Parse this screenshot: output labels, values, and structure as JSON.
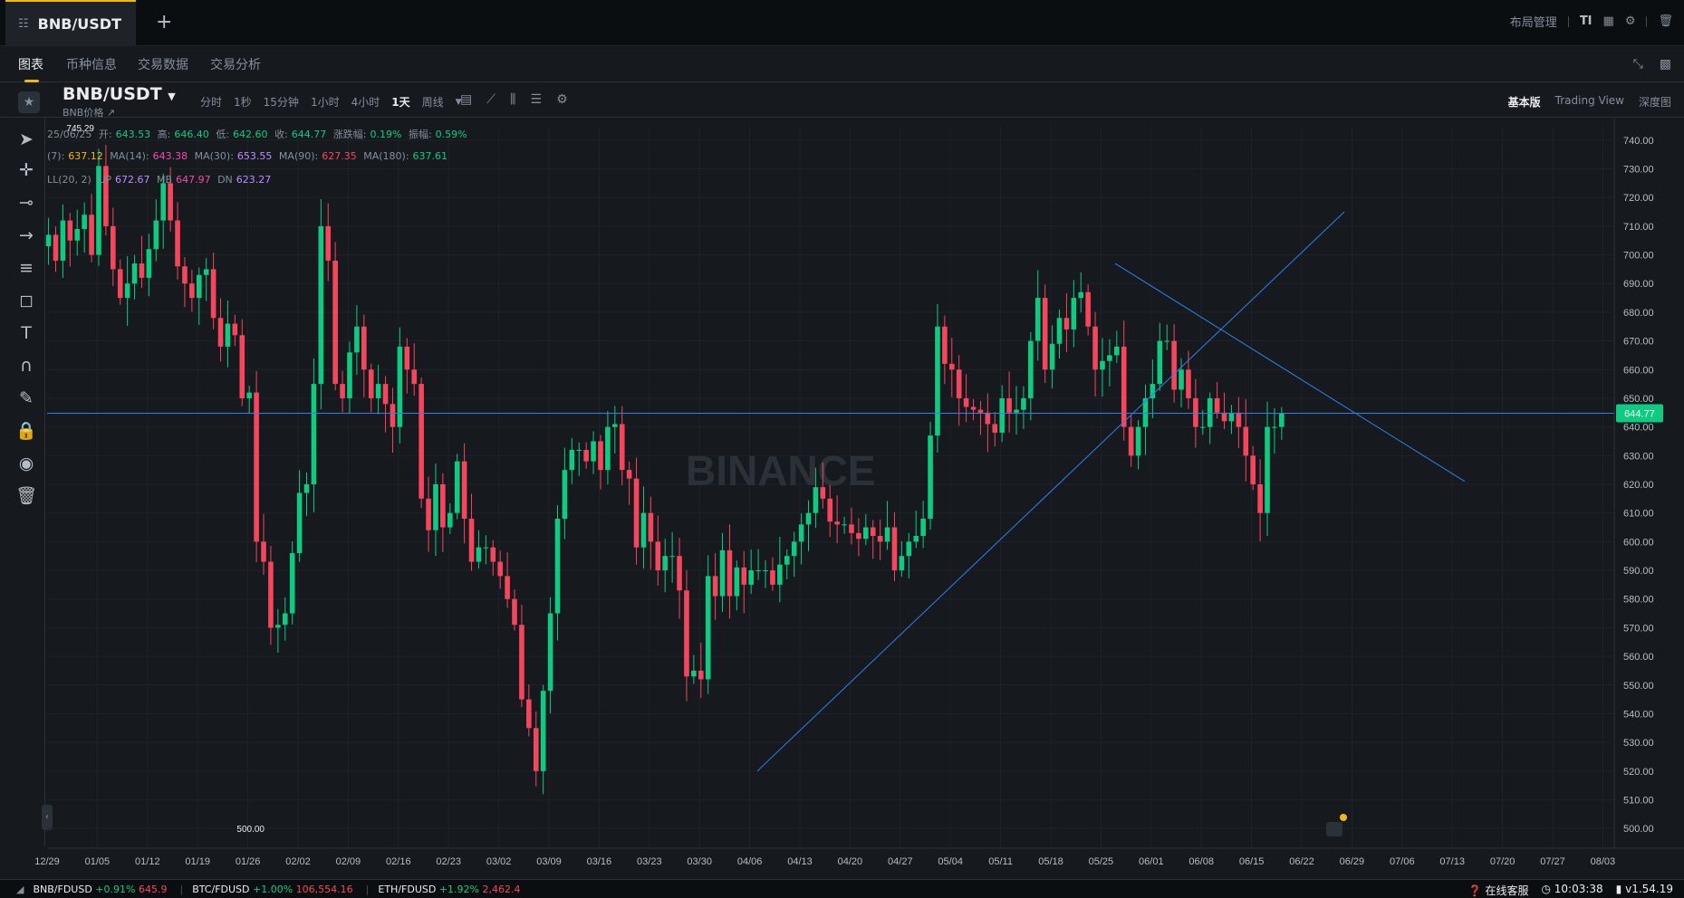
{
  "tab": {
    "title": "BNB/USDT",
    "plus": "+"
  },
  "topright": {
    "layout": "布局管理",
    "ti": "TI"
  },
  "subnav": {
    "items": [
      "图表",
      "币种信息",
      "交易数据",
      "交易分析"
    ]
  },
  "toolbar": {
    "symbol": "BNB/USDT",
    "subtitle": "BNB价格 ↗",
    "intervals": [
      "分时",
      "1秒",
      "15分钟",
      "1小时",
      "4小时",
      "1天",
      "周线"
    ],
    "active_interval": "1天",
    "views": [
      "基本版",
      "Trading View",
      "深度图"
    ],
    "active_view": "基本版"
  },
  "legend": {
    "line1": {
      "date": "25/06/25",
      "open_l": "开:",
      "open": "643.53",
      "high_l": "高:",
      "high": "646.40",
      "low_l": "低:",
      "low": "642.60",
      "close_l": "收:",
      "close": "644.77",
      "chg_l": "涨跌幅:",
      "chg": "0.19%",
      "amp_l": "振幅:",
      "amp": "0.59%"
    },
    "line2": {
      "ma7_l": "(7):",
      "ma7": "637.12",
      "ma14_l": "MA(14):",
      "ma14": "643.38",
      "ma30_l": "MA(30):",
      "ma30": "653.55",
      "ma90_l": "MA(90):",
      "ma90": "627.35",
      "ma180_l": "MA(180):",
      "ma180": "637.61"
    },
    "line3": {
      "boll_l": "LL(20, 2)",
      "up_l": "UP",
      "up": "672.67",
      "mb_l": "MB",
      "mb": "647.97",
      "dn_l": "DN",
      "dn": "623.27"
    }
  },
  "watermark": "BINANCE",
  "colors": {
    "up": "#0ecb81",
    "down": "#f6465d",
    "line": "#2f80ed",
    "accent": "#f0b90b",
    "ma7": "#f0b90b",
    "ma14": "#f34bb2",
    "ma30": "#c28bff",
    "ma90": "#f6465d",
    "ma180": "#0ecb81"
  },
  "chart_data": {
    "type": "candlestick",
    "ylim": [
      495,
      745
    ],
    "y_ticks": [
      500,
      510,
      520,
      530,
      540,
      550,
      560,
      570,
      580,
      590,
      600,
      610,
      620,
      630,
      640,
      650,
      660,
      670,
      680,
      690,
      700,
      710,
      720,
      730,
      740
    ],
    "y_tick_labels": [
      "500.00",
      "510.00",
      "520.00",
      "530.00",
      "540.00",
      "550.00",
      "560.00",
      "570.00",
      "580.00",
      "590.00",
      "600.00",
      "610.00",
      "620.00",
      "630.00",
      "640.00",
      "650.00",
      "660.00",
      "670.00",
      "680.00",
      "690.00",
      "700.00",
      "710.00",
      "720.00",
      "730.00",
      "740.00"
    ],
    "x_labels": [
      "12/29",
      "01/05",
      "01/12",
      "01/19",
      "01/26",
      "02/02",
      "02/09",
      "02/16",
      "02/23",
      "03/02",
      "03/09",
      "03/16",
      "03/23",
      "03/30",
      "04/06",
      "04/13",
      "04/20",
      "04/27",
      "05/04",
      "05/11",
      "05/18",
      "05/25",
      "06/01",
      "06/08",
      "06/15",
      "06/22",
      "06/29",
      "07/06",
      "07/13",
      "07/20",
      "07/27",
      "08/03"
    ],
    "x_start": "2024-12-29",
    "last_price": "644.77",
    "min_label": "500.00",
    "max_label": "745.29",
    "closes": [
      707,
      698,
      712,
      705,
      709,
      714,
      700,
      731,
      710,
      695,
      685,
      690,
      697,
      692,
      702,
      712,
      725,
      712,
      696,
      690,
      685,
      693,
      695,
      678,
      668,
      676,
      672,
      650,
      652,
      600,
      593,
      570,
      571,
      575,
      596,
      617,
      620,
      655,
      710,
      698,
      655,
      650,
      666,
      675,
      660,
      650,
      655,
      648,
      640,
      668,
      660,
      655,
      615,
      604,
      620,
      605,
      610,
      628,
      608,
      593,
      598,
      598,
      593,
      588,
      580,
      571,
      545,
      535,
      520,
      548,
      575,
      608,
      625,
      632,
      632,
      628,
      635,
      625,
      640,
      641,
      625,
      622,
      598,
      610,
      600,
      590,
      595,
      595,
      583,
      553,
      555,
      552,
      588,
      581,
      597,
      581,
      591,
      585,
      590,
      590,
      590,
      585,
      592,
      595,
      600,
      606,
      610,
      619,
      615,
      607,
      606,
      606,
      603,
      601,
      605,
      602,
      600,
      605,
      590,
      595,
      600,
      602,
      608,
      637,
      675,
      662,
      660,
      650,
      647,
      646,
      645,
      641,
      638,
      650,
      645,
      646,
      650,
      670,
      685,
      660,
      669,
      678,
      674,
      685,
      687,
      675,
      660,
      663,
      665,
      668,
      640,
      630,
      640,
      650,
      655,
      670,
      670,
      653,
      660,
      650,
      640,
      640,
      650,
      645,
      642,
      645,
      640,
      630,
      620,
      610,
      640,
      640,
      644.77
    ]
  }
}
